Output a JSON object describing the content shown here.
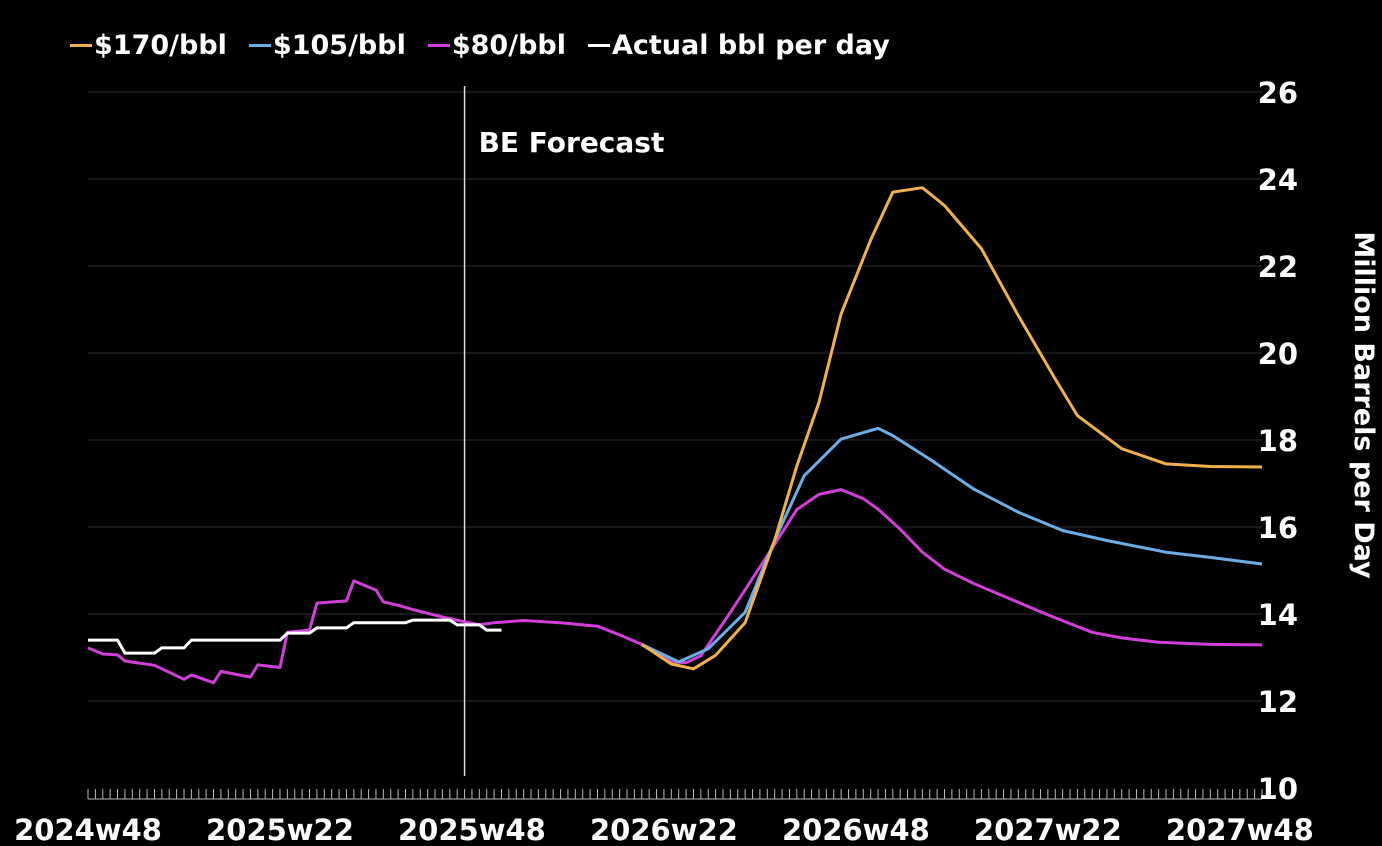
{
  "chart_data": {
    "type": "line",
    "title": "",
    "annotation": "BE Forecast",
    "forecast_start": "2025w47",
    "xlabel": "",
    "ylabel": "Million Barrels per Day",
    "ylim": [
      10,
      26
    ],
    "yticks": [
      "10",
      "12",
      "14",
      "16",
      "18",
      "20",
      "22",
      "24",
      "26"
    ],
    "xlim": [
      "2024w48",
      "2027w51"
    ],
    "xticks": [
      "2024w48",
      "2025w22",
      "2025w48",
      "2026w22",
      "2026w48",
      "2027w22",
      "2027w48"
    ],
    "grid": true,
    "legend_position": "top",
    "series": [
      {
        "name": "$170/bbl",
        "color": "#f0b04a",
        "points": [
          [
            "2026w19",
            13.3
          ],
          [
            "2026w23",
            12.85
          ],
          [
            "2026w26",
            12.74
          ],
          [
            "2026w29",
            13.05
          ],
          [
            "2026w33",
            13.8
          ],
          [
            "2026w37",
            15.7
          ],
          [
            "2026w40",
            17.4
          ],
          [
            "2026w43",
            18.87
          ],
          [
            "2026w46",
            20.9
          ],
          [
            "2026w50",
            22.6
          ],
          [
            "2027w01",
            23.7
          ],
          [
            "2027w05",
            23.8
          ],
          [
            "2027w08",
            23.39
          ],
          [
            "2027w13",
            22.4
          ],
          [
            "2027w18",
            20.86
          ],
          [
            "2027w23",
            19.4
          ],
          [
            "2027w26",
            18.56
          ],
          [
            "2027w32",
            17.8
          ],
          [
            "2027w38",
            17.45
          ],
          [
            "2027w44",
            17.39
          ],
          [
            "2027w51",
            17.38
          ]
        ]
      },
      {
        "name": "$105/bbl",
        "color": "#6aaee8",
        "points": [
          [
            "2026w19",
            13.3
          ],
          [
            "2026w24",
            12.9
          ],
          [
            "2026w28",
            13.2
          ],
          [
            "2026w33",
            14.04
          ],
          [
            "2026w37",
            15.7
          ],
          [
            "2026w41",
            17.18
          ],
          [
            "2026w46",
            18.02
          ],
          [
            "2026w51",
            18.27
          ],
          [
            "2027w01",
            18.1
          ],
          [
            "2027w06",
            17.56
          ],
          [
            "2027w12",
            16.87
          ],
          [
            "2027w18",
            16.34
          ],
          [
            "2027w24",
            15.92
          ],
          [
            "2027w30",
            15.69
          ],
          [
            "2027w38",
            15.42
          ],
          [
            "2027w44",
            15.3
          ],
          [
            "2027w51",
            15.15
          ]
        ]
      },
      {
        "name": "$80/bbl",
        "color": "#d23ed8",
        "points": [
          [
            "2024w48",
            13.22
          ],
          [
            "2024w50",
            13.08
          ],
          [
            "2024w52",
            13.06
          ],
          [
            "2025w01",
            12.92
          ],
          [
            "2025w05",
            12.82
          ],
          [
            "2025w09",
            12.5
          ],
          [
            "2025w10",
            12.6
          ],
          [
            "2025w13",
            12.42
          ],
          [
            "2025w14",
            12.68
          ],
          [
            "2025w18",
            12.55
          ],
          [
            "2025w19",
            12.83
          ],
          [
            "2025w22",
            12.77
          ],
          [
            "2025w23",
            13.58
          ],
          [
            "2025w26",
            13.63
          ],
          [
            "2025w27",
            14.25
          ],
          [
            "2025w31",
            14.3
          ],
          [
            "2025w32",
            14.76
          ],
          [
            "2025w35",
            14.55
          ],
          [
            "2025w36",
            14.28
          ],
          [
            "2025w38",
            14.2
          ],
          [
            "2025w40",
            14.1
          ],
          [
            "2025w44",
            13.93
          ],
          [
            "2025w47",
            13.82
          ],
          [
            "2025w49",
            13.75
          ],
          [
            "2025w51",
            13.8
          ],
          [
            "2026w03",
            13.85
          ],
          [
            "2026w08",
            13.8
          ],
          [
            "2026w13",
            13.72
          ],
          [
            "2026w16",
            13.52
          ],
          [
            "2026w19",
            13.3
          ],
          [
            "2026w23",
            12.9
          ],
          [
            "2026w25",
            12.88
          ],
          [
            "2026w27",
            13.04
          ],
          [
            "2026w31",
            14.04
          ],
          [
            "2026w36",
            15.34
          ],
          [
            "2026w40",
            16.4
          ],
          [
            "2026w43",
            16.75
          ],
          [
            "2026w46",
            16.86
          ],
          [
            "2026w49",
            16.65
          ],
          [
            "2026w51",
            16.41
          ],
          [
            "2027w02",
            15.95
          ],
          [
            "2027w05",
            15.42
          ],
          [
            "2027w08",
            15.03
          ],
          [
            "2027w12",
            14.7
          ],
          [
            "2027w17",
            14.34
          ],
          [
            "2027w22",
            13.98
          ],
          [
            "2027w28",
            13.58
          ],
          [
            "2027w32",
            13.45
          ],
          [
            "2027w37",
            13.35
          ],
          [
            "2027w44",
            13.3
          ],
          [
            "2027w51",
            13.29
          ]
        ]
      },
      {
        "name": "Actual bbl per day",
        "color": "#ffffff",
        "points": [
          [
            "2024w48",
            13.4
          ],
          [
            "2024w52",
            13.4
          ],
          [
            "2025w01",
            13.1
          ],
          [
            "2025w05",
            13.1
          ],
          [
            "2025w06",
            13.22
          ],
          [
            "2025w09",
            13.22
          ],
          [
            "2025w10",
            13.4
          ],
          [
            "2025w22",
            13.4
          ],
          [
            "2025w23",
            13.56
          ],
          [
            "2025w26",
            13.56
          ],
          [
            "2025w27",
            13.68
          ],
          [
            "2025w31",
            13.68
          ],
          [
            "2025w32",
            13.8
          ],
          [
            "2025w39",
            13.8
          ],
          [
            "2025w40",
            13.86
          ],
          [
            "2025w45",
            13.86
          ],
          [
            "2025w46",
            13.75
          ],
          [
            "2025w49",
            13.75
          ],
          [
            "2025w50",
            13.63
          ],
          [
            "2025w52",
            13.63
          ]
        ]
      }
    ]
  }
}
